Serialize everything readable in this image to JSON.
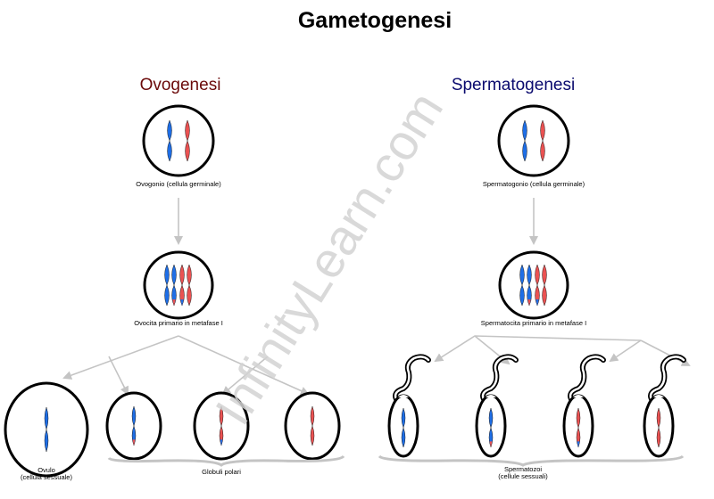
{
  "title": "Gametogenesi",
  "colors": {
    "blue": "#1e6ee6",
    "red": "#ea5252",
    "ovo_title": "#6b0a0a",
    "sperm_title": "#0a0a6e",
    "arrow": "#bdbdbd",
    "watermark": "#d6d6d6"
  },
  "watermark": "InfinityLearn.com",
  "ovogenesi": {
    "title": "Ovogenesi",
    "oogonium_label": "Ovogonio (cellula germinale)",
    "primary_label": "Ovocita primario in metafase I",
    "ovum_label_1": "Ovulo",
    "ovum_label_2": "(cellula sessuale)",
    "polar_label": "Globuli polari"
  },
  "spermatogenesi": {
    "title": "Spermatogenesi",
    "spermatogonium_label": "Spermatogonio (cellula germinale)",
    "primary_label": "Spermatocita primario in metafase I",
    "sperm_label_1": "Spermatozoi",
    "sperm_label_2": "(cellule sessuali)"
  }
}
